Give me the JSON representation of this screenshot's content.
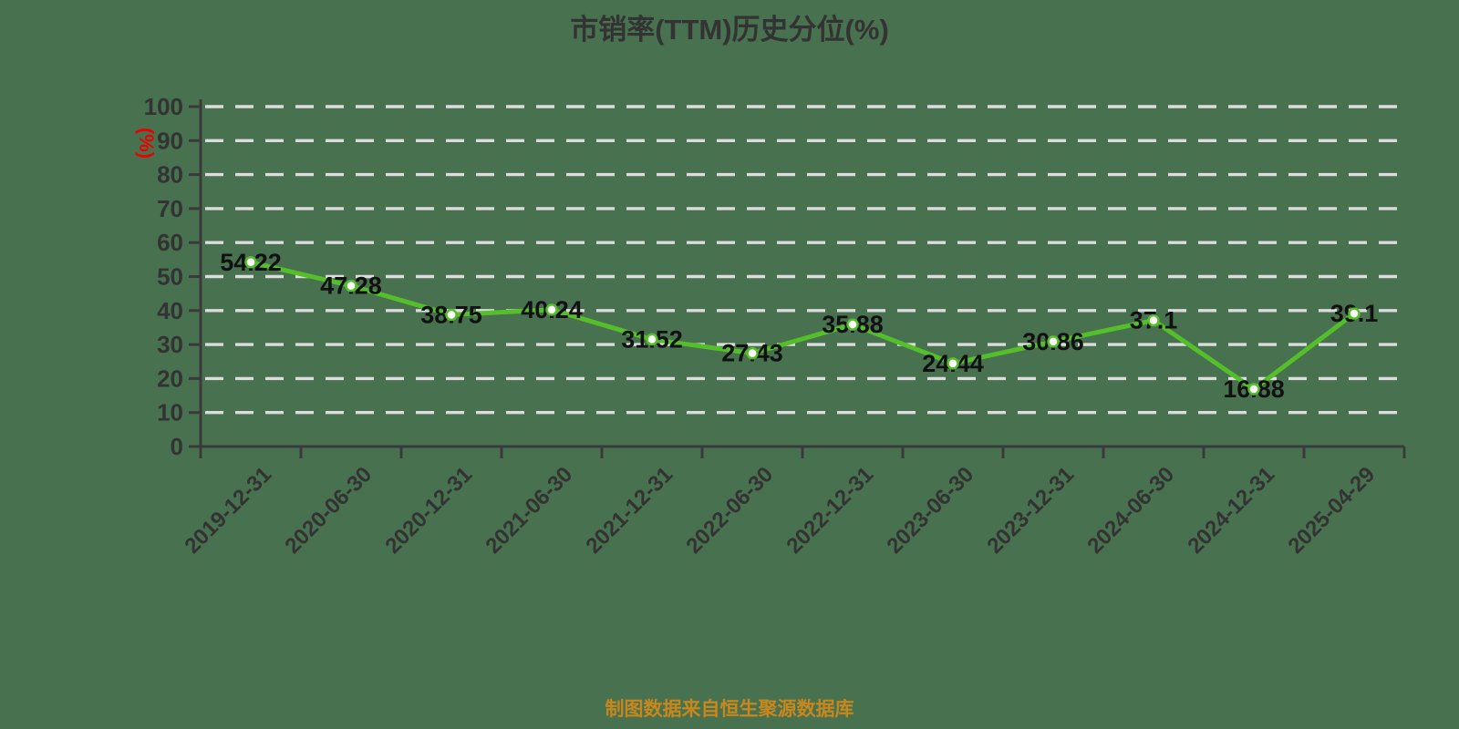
{
  "chart_data": {
    "type": "line",
    "title": "市销率(TTM)历史分位(%)",
    "y_unit": "(%)",
    "source_note": "制图数据来自恒生聚源数据库",
    "categories": [
      "2019-12-31",
      "2020-06-30",
      "2020-12-31",
      "2021-06-30",
      "2021-12-31",
      "2022-06-30",
      "2022-12-31",
      "2023-06-30",
      "2023-12-31",
      "2024-06-30",
      "2024-12-31",
      "2025-04-29"
    ],
    "values": [
      54.22,
      47.28,
      38.75,
      40.24,
      31.52,
      27.43,
      35.88,
      24.44,
      30.86,
      37.1,
      16.88,
      39.1
    ],
    "ylim": [
      0,
      100
    ],
    "y_tick_step": 10,
    "grid": true,
    "grid_style": "dashed",
    "legend": false,
    "x_label_rotation": -45,
    "colors": {
      "background": "#48714F",
      "line": "#55BE2B",
      "marker_fill": "#FFFFFF",
      "grid": "#DCDCDC",
      "axis": "#3A3A3A",
      "tick_label": "#333333",
      "value_label": "#111111",
      "title": "#333333",
      "y_unit": "#EE0000",
      "source_note": "#C8871D"
    }
  }
}
